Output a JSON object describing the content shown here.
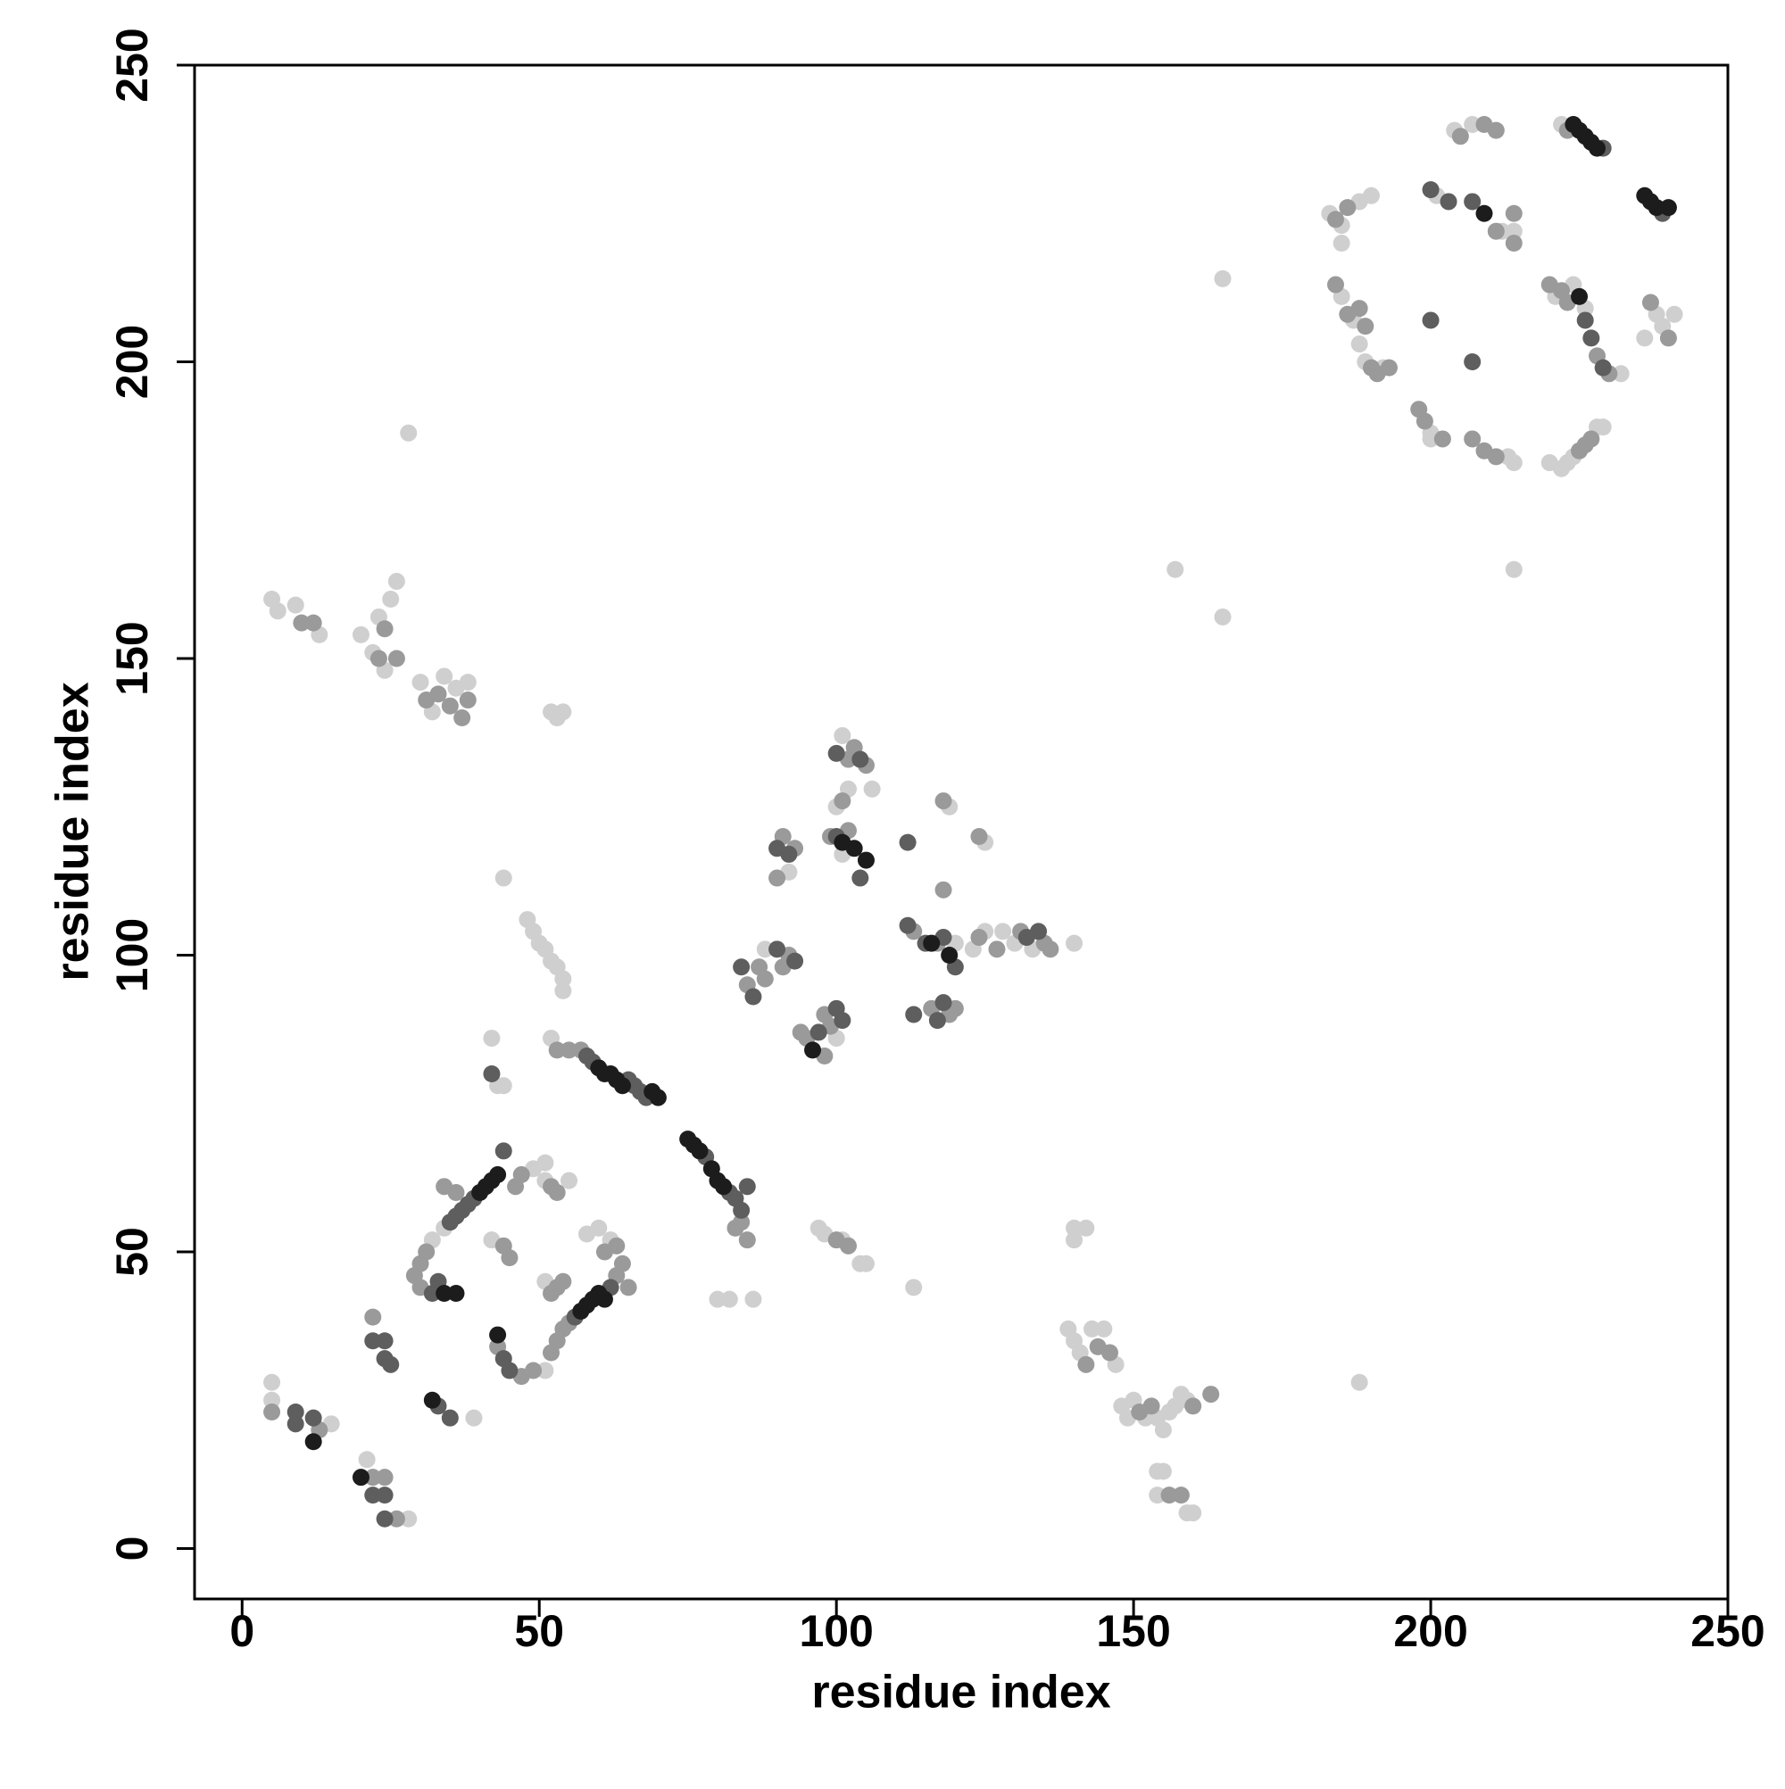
{
  "chart_data": {
    "type": "scatter",
    "x_label": "residue index",
    "y_label": "residue index",
    "xlim": [
      -8,
      250
    ],
    "ylim": [
      -8.5,
      250
    ],
    "xticks": [
      0,
      50,
      100,
      150,
      200,
      250
    ],
    "yticks": [
      0,
      50,
      100,
      150,
      200,
      250
    ],
    "grid": false,
    "series": [
      {
        "color": "#cfcfcf",
        "x": [
          222,
          183,
          185,
          188,
          190,
          185,
          201,
          212,
          214,
          204,
          207,
          200,
          200,
          213,
          214,
          220,
          222,
          223,
          224,
          228,
          229,
          185,
          187,
          188,
          189,
          192,
          221,
          224,
          226,
          232,
          238,
          239,
          241,
          236,
          165,
          157,
          165,
          214,
          188,
          28,
          101,
          106,
          102,
          100,
          101,
          92,
          119,
          125,
          123,
          125,
          128,
          130,
          133,
          140,
          120,
          88,
          100,
          97,
          98,
          101,
          104,
          105,
          113,
          82,
          80,
          86,
          52,
          42,
          43,
          44,
          48,
          49,
          50,
          51,
          52,
          53,
          54,
          54,
          44,
          5,
          6,
          9,
          13,
          20,
          22,
          24,
          23,
          25,
          26,
          30,
          32,
          34,
          36,
          38,
          52,
          53,
          54,
          51,
          62,
          60,
          58,
          49,
          51,
          55,
          51,
          32,
          34,
          42,
          51,
          5,
          5,
          15,
          21,
          28,
          39,
          140,
          140,
          142,
          139,
          140,
          141,
          143,
          145,
          147,
          148,
          149,
          150,
          152,
          154,
          155,
          156,
          157,
          158,
          159,
          154,
          155,
          154,
          159,
          160
        ],
        "values": [
          240,
          225,
          223,
          227,
          228,
          220,
          228,
          222,
          222,
          239,
          240,
          188,
          187,
          184,
          183,
          183,
          182,
          183,
          184,
          189,
          189,
          211,
          207,
          203,
          200,
          199,
          211,
          213,
          209,
          198,
          208,
          206,
          208,
          204,
          214,
          165,
          157,
          165,
          28,
          188,
          137,
          128,
          128,
          125,
          117,
          114,
          125,
          119,
          101,
          104,
          104,
          102,
          101,
          102,
          102,
          101,
          86,
          54,
          53,
          52,
          48,
          48,
          44,
          42,
          42,
          42,
          86,
          86,
          78,
          78,
          106,
          104,
          102,
          101,
          99,
          98,
          96,
          94,
          113,
          160,
          158,
          159,
          154,
          154,
          151,
          148,
          157,
          160,
          163,
          146,
          141,
          147,
          145,
          146,
          141,
          140,
          141,
          30,
          52,
          54,
          53,
          64,
          62,
          62,
          65,
          52,
          54,
          52,
          45,
          28,
          25,
          21,
          15,
          5,
          22,
          54,
          52,
          54,
          37,
          35,
          33,
          37,
          37,
          31,
          24,
          22,
          25,
          22,
          22,
          20,
          23,
          24,
          26,
          25,
          13,
          13,
          9,
          6,
          6
        ]
      },
      {
        "color": "#9a9a9a",
        "x": [
          223,
          186,
          184,
          205,
          209,
          211,
          207,
          209,
          211,
          225,
          226,
          227,
          198,
          199,
          202,
          220,
          222,
          223,
          228,
          230,
          237,
          240,
          184,
          186,
          188,
          189,
          190,
          191,
          193,
          211,
          214,
          214,
          102,
          103,
          105,
          101,
          102,
          99,
          91,
          93,
          90,
          118,
          124,
          113,
          117,
          118,
          124,
          127,
          131,
          135,
          136,
          116,
          119,
          120,
          85,
          87,
          88,
          91,
          92,
          94,
          95,
          98,
          99,
          98,
          53,
          55,
          57,
          84,
          85,
          43,
          47,
          49,
          52,
          53,
          54,
          55,
          63,
          64,
          65,
          61,
          63,
          46,
          47,
          52,
          53,
          34,
          36,
          31,
          30,
          29,
          30,
          44,
          45,
          52,
          53,
          54,
          5,
          13,
          22,
          24,
          26,
          22,
          10,
          12,
          23,
          24,
          26,
          31,
          33,
          35,
          37,
          38,
          83,
          100,
          102,
          142,
          144,
          146,
          151,
          153,
          156,
          158,
          160,
          163
        ],
        "values": [
          239,
          226,
          224,
          238,
          240,
          239,
          187,
          185,
          184,
          185,
          186,
          187,
          192,
          190,
          187,
          213,
          212,
          210,
          201,
          198,
          210,
          204,
          213,
          208,
          209,
          206,
          199,
          198,
          199,
          222,
          225,
          220,
          133,
          135,
          132,
          126,
          121,
          120,
          120,
          118,
          113,
          126,
          120,
          104,
          102,
          111,
          103,
          101,
          104,
          102,
          101,
          91,
          90,
          91,
          95,
          98,
          96,
          98,
          100,
          87,
          86,
          83,
          88,
          90,
          84,
          84,
          84,
          55,
          52,
          34,
          29,
          30,
          33,
          35,
          37,
          38,
          46,
          48,
          44,
          50,
          51,
          61,
          63,
          61,
          60,
          61,
          60,
          50,
          48,
          46,
          44,
          51,
          49,
          43,
          44,
          45,
          23,
          20,
          12,
          12,
          5,
          39,
          156,
          156,
          150,
          155,
          150,
          143,
          144,
          142,
          140,
          143,
          54,
          52,
          51,
          31,
          34,
          33,
          23,
          24,
          9,
          9,
          24,
          26
        ]
      },
      {
        "color": "#5e5e5e",
        "x": [
          229,
          239,
          200,
          207,
          226,
          227,
          229,
          200,
          203,
          207,
          100,
          104,
          100,
          104,
          112,
          90,
          92,
          112,
          115,
          118,
          120,
          132,
          134,
          113,
          117,
          118,
          84,
          86,
          90,
          93,
          97,
          100,
          101,
          58,
          59,
          65,
          66,
          67,
          68,
          78,
          82,
          83,
          84,
          85,
          42,
          44,
          45,
          56,
          62,
          44,
          39,
          38,
          37,
          36,
          35,
          32,
          33,
          22,
          24,
          24,
          25,
          9,
          9,
          22,
          24,
          33,
          35,
          24,
          12
        ],
        "values": [
          236,
          225,
          207,
          200,
          207,
          204,
          199,
          229,
          227,
          227,
          134,
          133,
          120,
          113,
          119,
          118,
          117,
          105,
          102,
          103,
          98,
          103,
          104,
          90,
          89,
          92,
          98,
          93,
          101,
          99,
          87,
          91,
          89,
          83,
          82,
          79,
          78,
          77,
          76,
          66,
          60,
          59,
          57,
          61,
          80,
          32,
          30,
          39,
          44,
          67,
          59,
          58,
          57,
          56,
          55,
          43,
          45,
          35,
          35,
          32,
          31,
          23,
          21,
          9,
          9,
          24,
          22,
          5,
          22
        ]
      },
      {
        "color": "#1c1c1c",
        "x": [
          224,
          225,
          226,
          227,
          228,
          236,
          237,
          238,
          240,
          209,
          225,
          60,
          61,
          62,
          63,
          64,
          69,
          70,
          75,
          76,
          77,
          79,
          80,
          81,
          101,
          103,
          105,
          116,
          119,
          43,
          57,
          58,
          59,
          60,
          61,
          43,
          42,
          41,
          40,
          34,
          36,
          12,
          20,
          32,
          96
        ],
        "values": [
          240,
          239,
          238,
          237,
          236,
          228,
          227,
          226,
          226,
          225,
          211,
          81,
          80,
          80,
          79,
          78,
          77,
          76,
          69,
          68,
          67,
          64,
          62,
          61,
          119,
          118,
          116,
          102,
          100,
          36,
          40,
          41,
          42,
          43,
          42,
          63,
          62,
          61,
          60,
          43,
          43,
          18,
          12,
          25,
          84
        ]
      }
    ]
  }
}
